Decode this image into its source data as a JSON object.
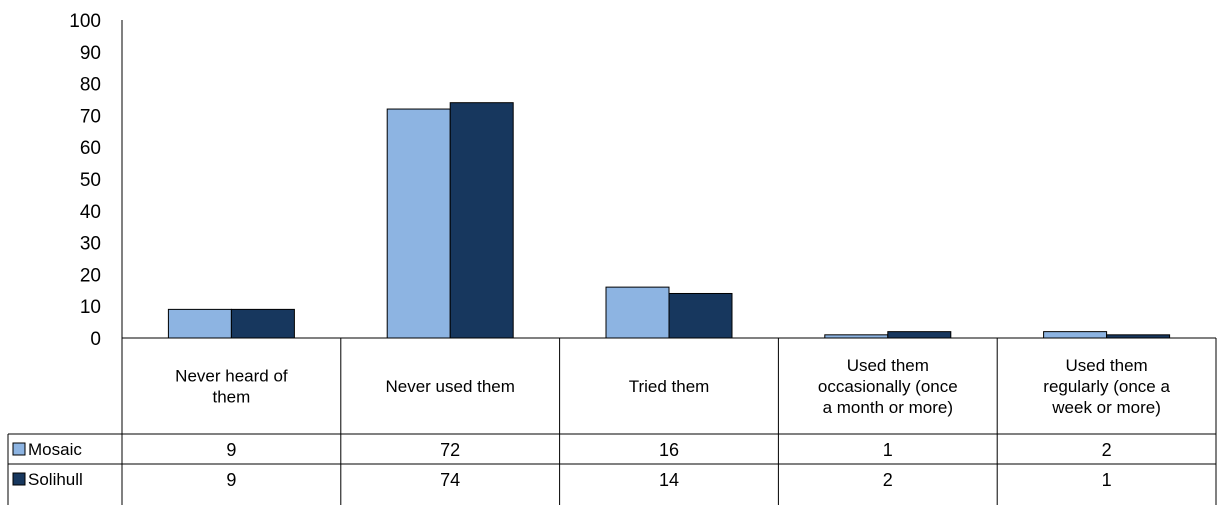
{
  "chart_data": {
    "type": "bar",
    "title": "",
    "xlabel": "",
    "ylabel": "",
    "ylim": [
      0,
      100
    ],
    "yticks": [
      0,
      10,
      20,
      30,
      40,
      50,
      60,
      70,
      80,
      90,
      100
    ],
    "grid": false,
    "legend": "data-table-left",
    "categories": [
      [
        "Never heard of",
        "them"
      ],
      [
        "Never used them"
      ],
      [
        "Tried them"
      ],
      [
        "Used them",
        "occasionally (once",
        "a month or more)"
      ],
      [
        "Used them",
        "regularly (once a",
        "week or more)"
      ]
    ],
    "series": [
      {
        "name": "Mosaic",
        "color": "#8db4e2",
        "values": [
          9,
          72,
          16,
          1,
          2
        ]
      },
      {
        "name": "Solihull",
        "color": "#17375e",
        "values": [
          9,
          74,
          14,
          2,
          1
        ]
      }
    ]
  }
}
